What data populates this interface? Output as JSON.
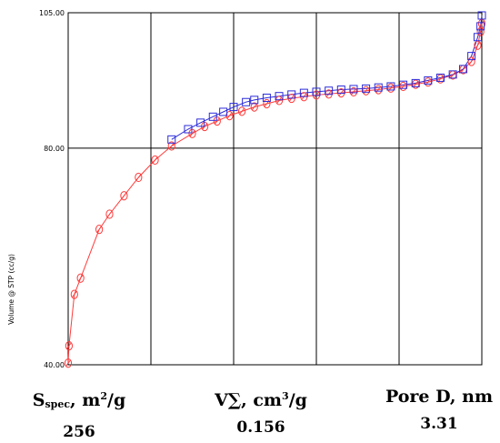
{
  "chart_data": {
    "type": "scatter",
    "title": "",
    "xlabel": "",
    "ylabel": "Volume @ STP (cc/g)",
    "xlim": [
      0,
      1
    ],
    "ylim": [
      40,
      105
    ],
    "x_gridlines": [
      0.2,
      0.4,
      0.6,
      0.8
    ],
    "y_gridlines": [
      80
    ],
    "yticks": [
      "40.00",
      "80.00",
      "105.00"
    ],
    "grid": true,
    "legend": "none",
    "series": [
      {
        "marker": "circle",
        "color": "#ff3b3b",
        "line": true,
        "points": [
          [
            0.0,
            40.3
          ],
          [
            0.002,
            43.5
          ],
          [
            0.015,
            53.0
          ],
          [
            0.03,
            56.0
          ],
          [
            0.075,
            65.0
          ],
          [
            0.1,
            67.8
          ],
          [
            0.135,
            71.2
          ],
          [
            0.17,
            74.6
          ],
          [
            0.21,
            77.8
          ],
          [
            0.25,
            80.4
          ],
          [
            0.3,
            82.7
          ],
          [
            0.33,
            84.0
          ],
          [
            0.36,
            85.0
          ],
          [
            0.39,
            86.0
          ],
          [
            0.42,
            86.8
          ],
          [
            0.45,
            87.6
          ],
          [
            0.48,
            88.2
          ],
          [
            0.51,
            88.8
          ],
          [
            0.54,
            89.2
          ],
          [
            0.57,
            89.5
          ],
          [
            0.6,
            89.8
          ],
          [
            0.63,
            90.0
          ],
          [
            0.66,
            90.2
          ],
          [
            0.69,
            90.4
          ],
          [
            0.72,
            90.6
          ],
          [
            0.75,
            90.8
          ],
          [
            0.78,
            91.1
          ],
          [
            0.81,
            91.4
          ],
          [
            0.84,
            91.8
          ],
          [
            0.87,
            92.2
          ],
          [
            0.9,
            92.8
          ],
          [
            0.93,
            93.5
          ],
          [
            0.955,
            94.5
          ],
          [
            0.975,
            96.0
          ],
          [
            0.99,
            99.0
          ],
          [
            0.997,
            101.5
          ],
          [
            1.0,
            103.0
          ]
        ]
      },
      {
        "marker": "square",
        "color": "#2b2bd9",
        "line": true,
        "points": [
          [
            1.0,
            104.5
          ],
          [
            0.997,
            102.5
          ],
          [
            0.99,
            100.5
          ],
          [
            0.975,
            97.0
          ],
          [
            0.955,
            94.6
          ],
          [
            0.93,
            93.6
          ],
          [
            0.9,
            93.0
          ],
          [
            0.87,
            92.5
          ],
          [
            0.84,
            92.0
          ],
          [
            0.81,
            91.7
          ],
          [
            0.78,
            91.4
          ],
          [
            0.75,
            91.2
          ],
          [
            0.72,
            91.0
          ],
          [
            0.69,
            90.9
          ],
          [
            0.66,
            90.8
          ],
          [
            0.63,
            90.6
          ],
          [
            0.6,
            90.4
          ],
          [
            0.57,
            90.2
          ],
          [
            0.54,
            89.9
          ],
          [
            0.51,
            89.6
          ],
          [
            0.48,
            89.3
          ],
          [
            0.45,
            88.9
          ],
          [
            0.43,
            88.5
          ],
          [
            0.4,
            87.6
          ],
          [
            0.375,
            86.7
          ],
          [
            0.35,
            85.8
          ],
          [
            0.32,
            84.7
          ],
          [
            0.29,
            83.5
          ],
          [
            0.25,
            81.6
          ]
        ]
      }
    ]
  },
  "stats": {
    "surface_area": {
      "label_main": "S",
      "label_sub": "spec",
      "label_rest": ", m",
      "label_sup": "2",
      "label_tail": "/g",
      "value": "256"
    },
    "volume": {
      "label_main": "V∑, cm",
      "label_sup": "3",
      "label_tail": "/g",
      "value": "0.156"
    },
    "pore": {
      "label_main": "Pore D, nm",
      "value": "3.31"
    }
  }
}
